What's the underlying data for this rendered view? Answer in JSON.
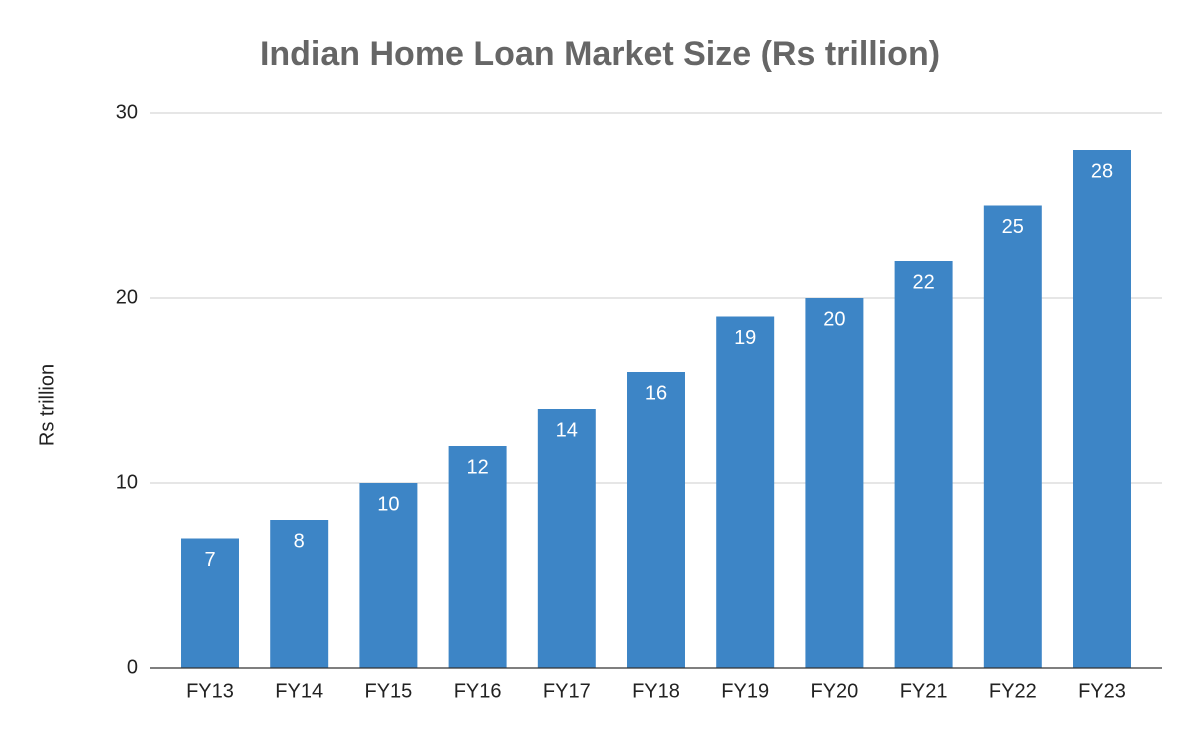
{
  "chart_data": {
    "type": "bar",
    "title": "Indian Home Loan Market Size (Rs trillion)",
    "y_label": "Rs trillion",
    "categories": [
      "FY13",
      "FY14",
      "FY15",
      "FY16",
      "FY17",
      "FY18",
      "FY19",
      "FY20",
      "FY21",
      "FY22",
      "FY23"
    ],
    "values": [
      7,
      8,
      10,
      12,
      14,
      16,
      19,
      20,
      22,
      25,
      28
    ],
    "color": "#3d85c6",
    "ylim": [
      0,
      30
    ],
    "yticks": [
      0,
      10,
      20,
      30
    ],
    "grid": true,
    "data_labels": true
  }
}
